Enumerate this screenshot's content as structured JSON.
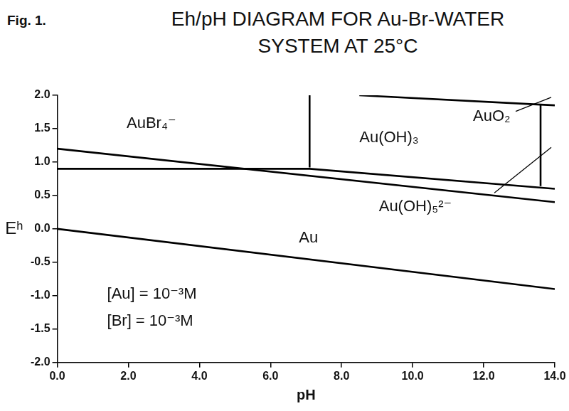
{
  "chart_data": {
    "type": "line",
    "figure_label": "Fig. 1.",
    "title": [
      "Eh/pH DIAGRAM FOR Au-Br-WATER",
      "SYSTEM AT 25°C"
    ],
    "x_label": "pH",
    "y_label": "Eʰ",
    "color": "#000000",
    "grid": false,
    "xlim": [
      0,
      14
    ],
    "xticks": [
      {
        "value": 0,
        "label": "0.0"
      },
      {
        "value": 2,
        "label": "2.0"
      },
      {
        "value": 4,
        "label": "4.0"
      },
      {
        "value": 6,
        "label": "6.0"
      },
      {
        "value": 8,
        "label": "8.0"
      },
      {
        "value": 10,
        "label": "10.0"
      },
      {
        "value": 12,
        "label": "12.0"
      },
      {
        "value": 14,
        "label": "14.0"
      }
    ],
    "ylim": [
      -2,
      2
    ],
    "yticks": [
      {
        "value": -2,
        "label": "-2.0"
      },
      {
        "value": -1.5,
        "label": "-1.5"
      },
      {
        "value": -1,
        "label": "-1.0"
      },
      {
        "value": -0.5,
        "label": "-0.5"
      },
      {
        "value": 0,
        "label": "0.0"
      },
      {
        "value": 0.5,
        "label": "0.5"
      },
      {
        "value": 1,
        "label": "1.0"
      },
      {
        "value": 1.5,
        "label": "1.5"
      },
      {
        "value": 2,
        "label": "2.0"
      }
    ],
    "series": [
      {
        "x": [
          0,
          14
        ],
        "values": [
          1.2,
          0.4
        ]
      },
      {
        "x": [
          0,
          14
        ],
        "values": [
          0,
          -0.9
        ]
      },
      {
        "x": [
          0,
          7.1,
          14
        ],
        "values": [
          0.9,
          0.9,
          0.6
        ]
      },
      {
        "x": [
          7.1,
          7.1
        ],
        "values": [
          0.92,
          2.0
        ]
      },
      {
        "x": [
          8.5,
          13.6,
          14
        ],
        "values": [
          2.0,
          1.86,
          1.85
        ]
      },
      {
        "x": [
          13.6,
          13.6
        ],
        "values": [
          0.64,
          1.86
        ]
      }
    ],
    "annotations": [
      {
        "text": "AuBr₄⁻",
        "x": 1.95,
        "y": 1.58
      },
      {
        "text": "Au(OH)₃",
        "x": 8.5,
        "y": 1.36
      },
      {
        "text": "AuO₂",
        "x": 11.7,
        "y": 1.68,
        "pointer": {
          "x": [
            12.9,
            13.9
          ],
          "y": [
            1.76,
            1.97
          ]
        }
      },
      {
        "text": "Au(OH)₅²⁻",
        "x": 9.05,
        "y": 0.33,
        "pointer": {
          "x": [
            12.3,
            13.9
          ],
          "y": [
            0.54,
            1.22
          ]
        }
      },
      {
        "text": "Au",
        "x": 6.8,
        "y": -0.14
      },
      {
        "text": "[Au] = 10⁻³M",
        "x": 1.4,
        "y": -0.98
      },
      {
        "text": "[Br] = 10⁻³M",
        "x": 1.4,
        "y": -1.38
      }
    ]
  }
}
